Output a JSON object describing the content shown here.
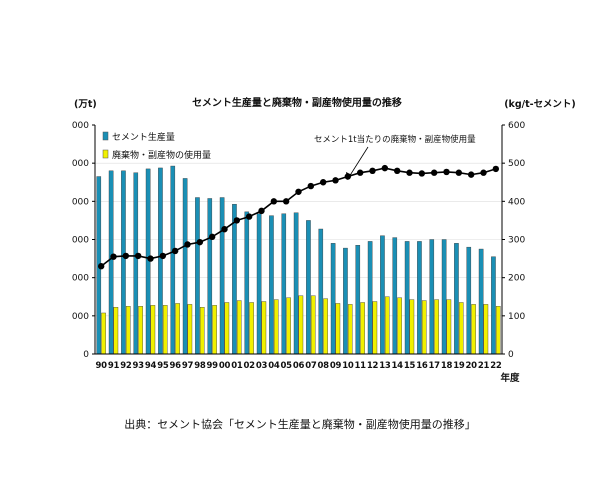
{
  "chart_data": {
    "type": "bar",
    "title": "セメント生産量と廃棄物・副産物使用量の推移",
    "left_unit": "(万t)",
    "right_unit": "(kg/t-セメント)",
    "xlabel": "年度",
    "annotation": "セメント1t当たりの廃棄物・副産物使用量",
    "source": "出典：セメント協会「セメント生産量と廃棄物・副産物使用量の推移」",
    "categories": [
      "90",
      "91",
      "92",
      "93",
      "94",
      "95",
      "96",
      "97",
      "98",
      "99",
      "00",
      "01",
      "02",
      "03",
      "04",
      "05",
      "06",
      "07",
      "08",
      "09",
      "10",
      "11",
      "12",
      "13",
      "14",
      "15",
      "16",
      "17",
      "18",
      "19",
      "20",
      "21",
      "22"
    ],
    "left_ticks": [
      "000",
      "000",
      "000",
      "000",
      "000",
      "000",
      "0"
    ],
    "right_ticks": [
      "600",
      "500",
      "400",
      "300",
      "200",
      "100",
      "0"
    ],
    "ylim_left": [
      0,
      12000
    ],
    "ylim_right": [
      0,
      600
    ],
    "series": [
      {
        "name": "セメント生産量",
        "kind": "bar",
        "axis": "left",
        "color": "#1a8fb5",
        "values": [
          9300,
          9600,
          9600,
          9500,
          9700,
          9750,
          9850,
          9200,
          8200,
          8150,
          8200,
          7850,
          7450,
          7350,
          7250,
          7350,
          7400,
          7000,
          6550,
          5800,
          5550,
          5700,
          5900,
          6200,
          6100,
          5900,
          5900,
          6000,
          6000,
          5800,
          5600,
          5500,
          5100
        ]
      },
      {
        "name": "廃棄物・副産物の使用量",
        "kind": "bar",
        "axis": "left",
        "color": "#f0f000",
        "values": [
          2150,
          2450,
          2500,
          2500,
          2550,
          2550,
          2650,
          2600,
          2450,
          2550,
          2700,
          2800,
          2700,
          2750,
          2850,
          2950,
          3050,
          3050,
          2900,
          2650,
          2600,
          2700,
          2750,
          3000,
          2950,
          2850,
          2800,
          2850,
          2850,
          2700,
          2600,
          2600,
          2500
        ]
      },
      {
        "name": "セメント1t当たりの廃棄物・副産物使用量",
        "kind": "line",
        "axis": "right",
        "color": "#000000",
        "values": [
          230,
          255,
          257,
          257,
          250,
          257,
          270,
          287,
          293,
          307,
          327,
          350,
          360,
          375,
          400,
          400,
          425,
          440,
          450,
          455,
          465,
          475,
          480,
          487,
          480,
          475,
          473,
          475,
          477,
          475,
          470,
          475,
          485
        ]
      }
    ]
  }
}
